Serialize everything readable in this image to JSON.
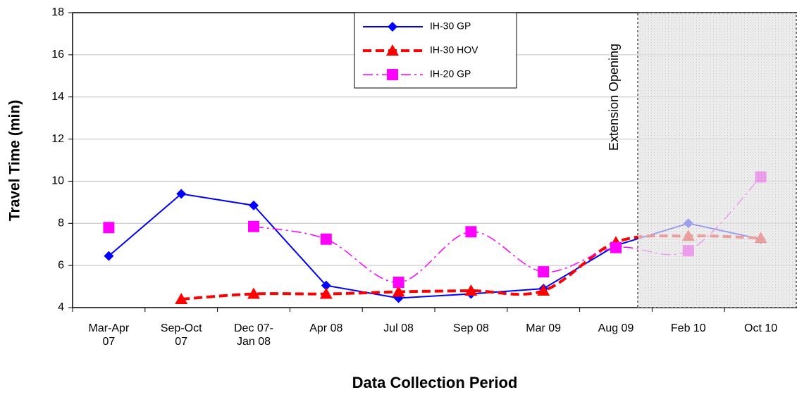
{
  "chart_data": {
    "type": "line",
    "y_label": "Travel Time (min)",
    "x_label": "Data Collection Period",
    "annotation": "Extension Opening",
    "categories": [
      "Mar-Apr 07",
      "Sep-Oct 07",
      "Dec 07- Jan 08",
      "Apr 08",
      "Jul 08",
      "Sep 08",
      "Mar 09",
      "Aug 09",
      "Feb 10",
      "Oct 10"
    ],
    "series": [
      {
        "name": "IH-30 GP",
        "color": "#0000ff",
        "marker": "diamond",
        "dash": "solid",
        "smooth": false,
        "values": [
          6.45,
          9.4,
          8.85,
          5.05,
          4.45,
          4.65,
          4.9,
          6.95,
          8.0,
          7.25
        ]
      },
      {
        "name": "IH-30 HOV",
        "color": "#ff0000",
        "marker": "triangle",
        "dash": "dashed",
        "smooth": true,
        "values": [
          null,
          4.4,
          4.65,
          4.65,
          4.75,
          4.8,
          4.8,
          7.1,
          7.4,
          7.3
        ]
      },
      {
        "name": "IH-20 GP",
        "color": "#ff00ff",
        "marker": "square",
        "dash": "dashdot",
        "smooth": true,
        "values": [
          7.8,
          null,
          7.85,
          7.25,
          5.2,
          7.6,
          5.7,
          6.85,
          6.7,
          10.2
        ]
      }
    ],
    "ylim": [
      4,
      18
    ],
    "yticks": [
      4,
      6,
      8,
      10,
      12,
      14,
      16,
      18
    ],
    "grid": true
  }
}
